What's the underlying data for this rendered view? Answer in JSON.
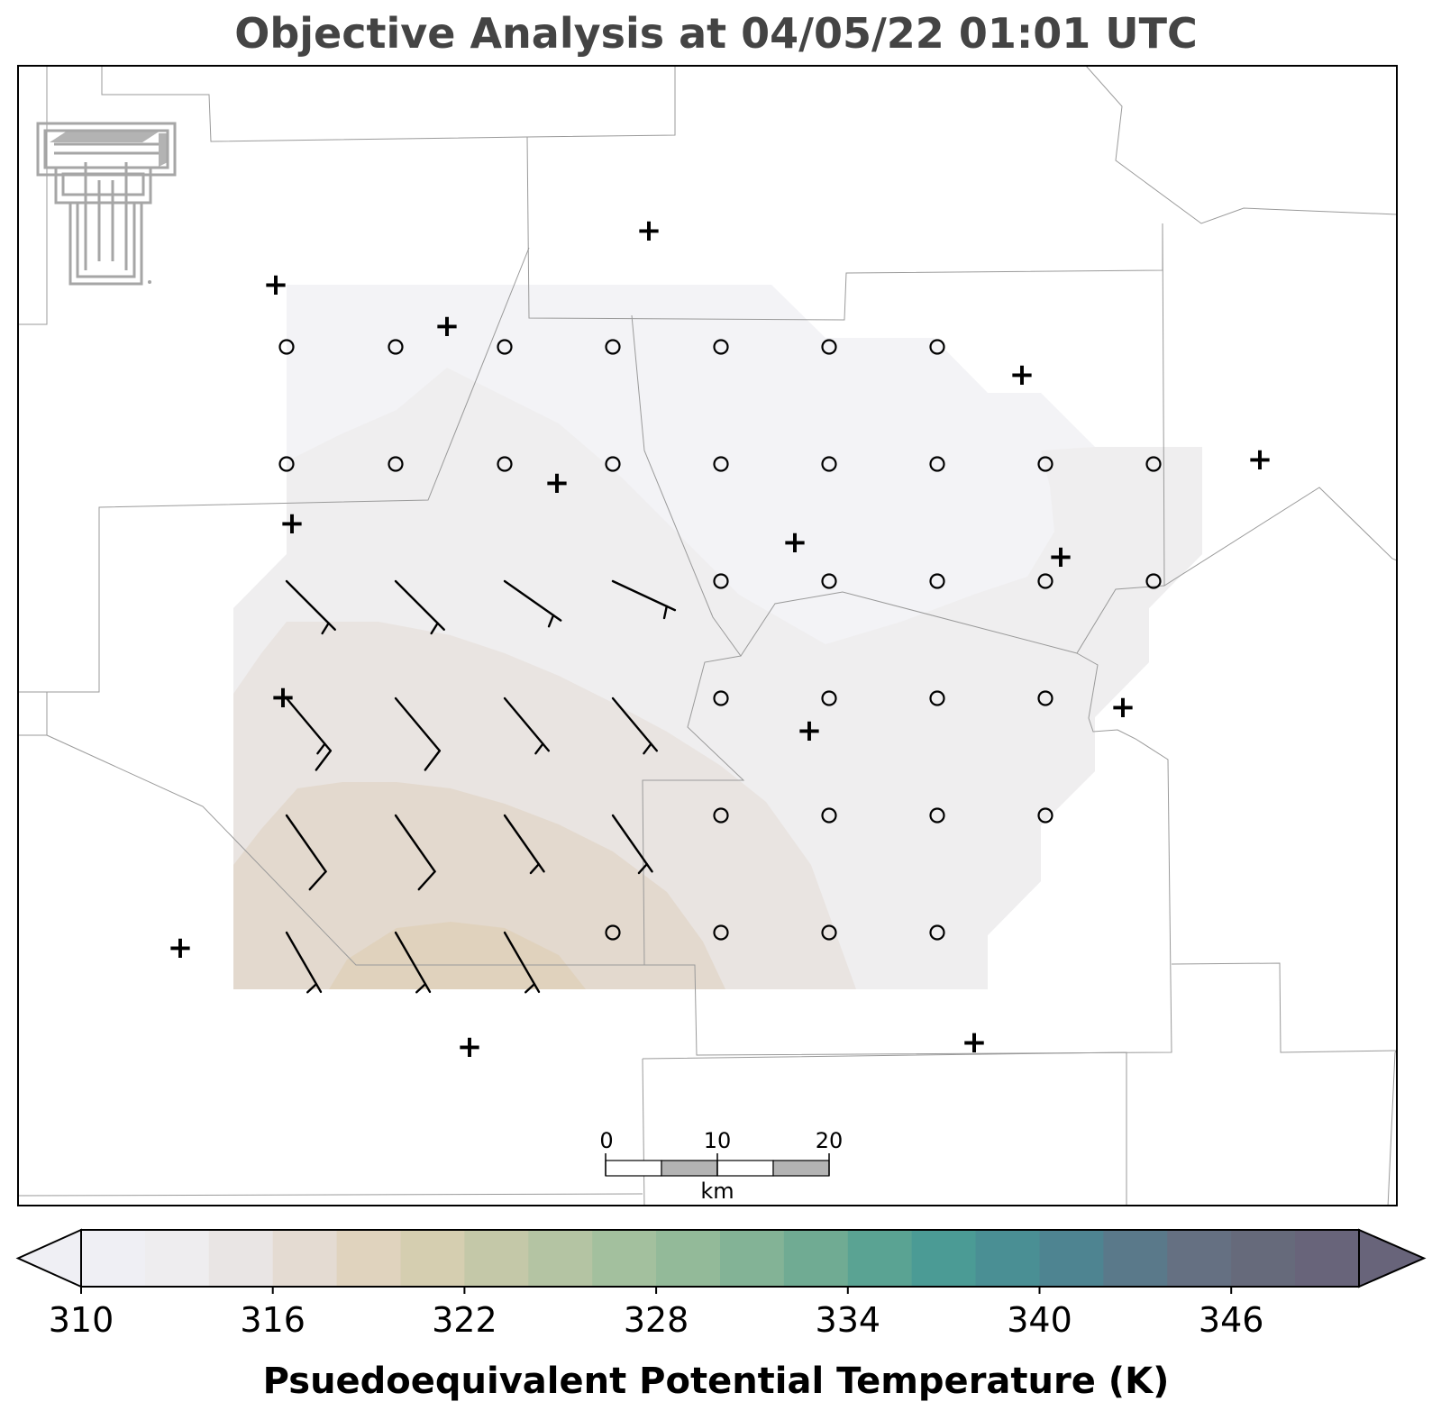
{
  "title": "Objective Analysis at 04/05/22 01:01 UTC",
  "scale_bar": {
    "ticks": [
      "0",
      "10",
      "20"
    ],
    "unit": "km"
  },
  "colorbar": {
    "label": "Psuedoequivalent Potential Temperature (K)",
    "min": 310,
    "max": 350,
    "step": 2,
    "ticks": [
      "310",
      "316",
      "322",
      "328",
      "334",
      "340",
      "346"
    ],
    "extend": "both",
    "colors": [
      "#efeff4",
      "#eeedef",
      "#e9e5e4",
      "#e4dbd2",
      "#e0d3be",
      "#d5ceb0",
      "#c4c8a8",
      "#b4c4a3",
      "#a3c09e",
      "#93ba99",
      "#83b396",
      "#70ab93",
      "#5aa393",
      "#4b9b95",
      "#4a8f94",
      "#4e8491",
      "#5a798a",
      "#657082",
      "#666a7b",
      "#68647a"
    ]
  },
  "map_layers": {
    "shading_colors": [
      "#f3f3f6",
      "#efeeef",
      "#e9e4e1",
      "#e3d9ce",
      "#e0d2bd"
    ],
    "boundary_color": "#9a9a9a",
    "logo_color": "#a6a6a6"
  },
  "station_markers": [
    "+",
    "+",
    "+",
    "+",
    "+",
    "+",
    "+",
    "+",
    "+",
    "+",
    "+",
    "+",
    "+",
    "+",
    "+",
    "+"
  ],
  "grid_markers": {
    "calm_symbol": "circle",
    "wind_barbs": [
      {
        "direction_deg": 315,
        "speed_kt": 5
      },
      {
        "direction_deg": 315,
        "speed_kt": 5
      },
      {
        "direction_deg": 305,
        "speed_kt": 5
      },
      {
        "direction_deg": 295,
        "speed_kt": 5
      },
      {
        "direction_deg": 320,
        "speed_kt": 15
      },
      {
        "direction_deg": 320,
        "speed_kt": 10
      },
      {
        "direction_deg": 320,
        "speed_kt": 5
      },
      {
        "direction_deg": 320,
        "speed_kt": 5
      },
      {
        "direction_deg": 325,
        "speed_kt": 10
      },
      {
        "direction_deg": 325,
        "speed_kt": 10
      },
      {
        "direction_deg": 325,
        "speed_kt": 5
      },
      {
        "direction_deg": 325,
        "speed_kt": 5
      },
      {
        "direction_deg": 330,
        "speed_kt": 5
      },
      {
        "direction_deg": 330,
        "speed_kt": 5
      },
      {
        "direction_deg": 330,
        "speed_kt": 5
      }
    ]
  }
}
